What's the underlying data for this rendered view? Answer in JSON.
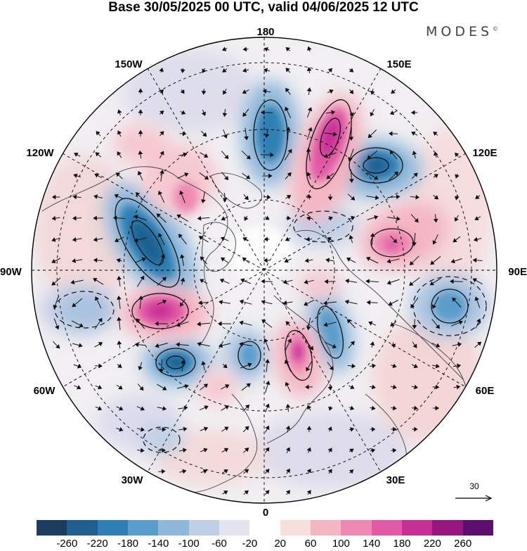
{
  "header": {
    "title": "Base 30/05/2025 00 UTC, valid 04/06/2025 12 UTC",
    "brand": "MODES",
    "brand_mark": "©"
  },
  "map": {
    "projection": "north-polar-stereographic",
    "longitude_labels": {
      "top": "180",
      "bottom": "0",
      "left": "90W",
      "right": "90E",
      "upper_left_1": "150W",
      "upper_left_2": "120W",
      "lower_left_1": "60W",
      "lower_left_2": "30W",
      "upper_right_1": "150E",
      "upper_right_2": "120E",
      "lower_right_1": "60E",
      "lower_right_2": "30E"
    },
    "reference_vector": {
      "label": "30"
    },
    "anomaly_centers": [
      {
        "sign": "negative",
        "lon": -100,
        "lat_approx": 55
      },
      {
        "sign": "negative",
        "lon": 175,
        "lat_approx": 62
      },
      {
        "sign": "positive",
        "lon": 160,
        "lat_approx": 58
      },
      {
        "sign": "negative",
        "lon": 130,
        "lat_approx": 55
      },
      {
        "sign": "positive",
        "lon": 105,
        "lat_approx": 62
      },
      {
        "sign": "negative",
        "lon": 75,
        "lat_approx": 42
      },
      {
        "sign": "negative",
        "lon": 30,
        "lat_approx": 60
      },
      {
        "sign": "positive",
        "lon": 20,
        "lat_approx": 62
      },
      {
        "sign": "negative",
        "lon": -20,
        "lat_approx": 65
      },
      {
        "sign": "negative",
        "lon": -45,
        "lat_approx": 42
      },
      {
        "sign": "positive",
        "lon": -68,
        "lat_approx": 52
      },
      {
        "sign": "negative",
        "lon": -78,
        "lat_approx": 35
      }
    ]
  },
  "colorbar": {
    "colors": [
      "#1b3c5c",
      "#1f5f8f",
      "#2f7fb4",
      "#5a9ccb",
      "#8fb7da",
      "#bfcfe6",
      "#e3e4f0",
      "#ffffff",
      "#f9dede",
      "#f4b6c2",
      "#ee88b2",
      "#e05aa5",
      "#c72e96",
      "#97157e",
      "#5c0f6e"
    ],
    "tick_labels": [
      "-260",
      "-220",
      "-180",
      "-140",
      "-100",
      "-60",
      "-20",
      "20",
      "60",
      "100",
      "140",
      "180",
      "220",
      "260"
    ]
  }
}
